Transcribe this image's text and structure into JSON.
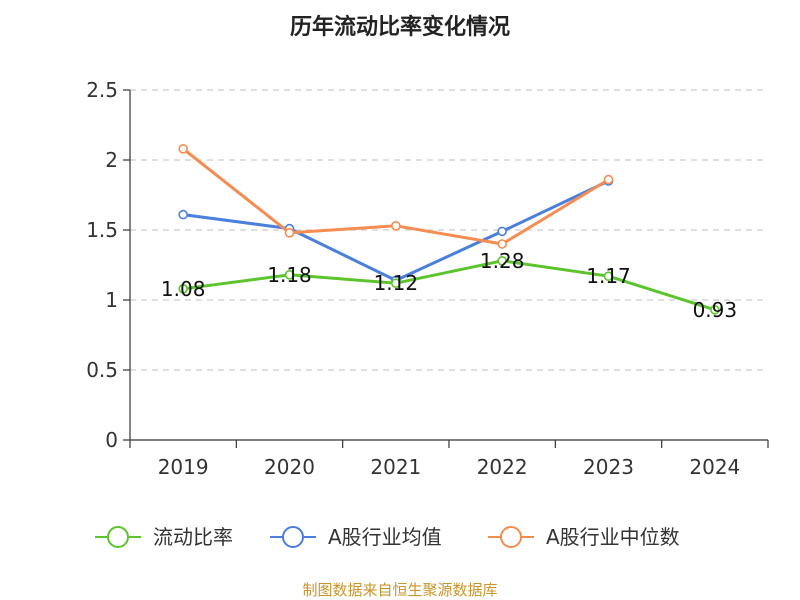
{
  "title": "历年流动比率变化情况",
  "source": "制图数据来自恒生聚源数据库",
  "chart_data": {
    "type": "line",
    "title": "历年流动比率变化情况",
    "xlabel": "",
    "ylabel": "",
    "categories": [
      "2019",
      "2020",
      "2021",
      "2022",
      "2023",
      "2024"
    ],
    "ylim": [
      0,
      2.5
    ],
    "yticks": [
      0,
      0.5,
      1,
      1.5,
      2,
      2.5
    ],
    "ytick_labels": [
      "0",
      "0.5",
      "1",
      "1.5",
      "2",
      "2.5"
    ],
    "grid": true,
    "legend_position": "bottom",
    "series": [
      {
        "name": "流动比率",
        "color": "#5cc42c",
        "values": [
          1.08,
          1.18,
          1.12,
          1.28,
          1.17,
          0.93
        ],
        "data_labels": [
          "1.08",
          "1.18",
          "1.12",
          "1.28",
          "1.17",
          "0.93"
        ]
      },
      {
        "name": "A股行业均值",
        "color": "#4a7fdc",
        "values": [
          1.61,
          1.51,
          1.14,
          1.49,
          1.85,
          null
        ]
      },
      {
        "name": "A股行业中位数",
        "color": "#f58c52",
        "values": [
          2.08,
          1.48,
          1.53,
          1.4,
          1.86,
          null
        ]
      }
    ]
  }
}
